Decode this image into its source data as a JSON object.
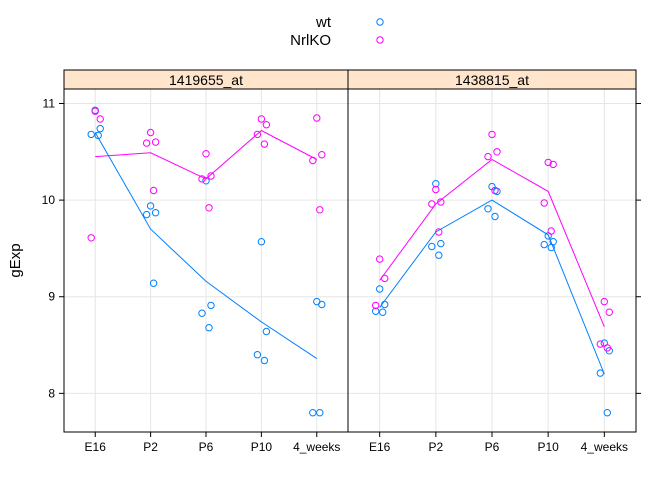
{
  "chart_data": {
    "type": "scatter",
    "ylabel": "gExp",
    "categories": [
      "E16",
      "P2",
      "P6",
      "P10",
      "4_weeks"
    ],
    "yticks": [
      8,
      9,
      10,
      11
    ],
    "ylim": [
      7.6,
      11.15
    ],
    "grid": true,
    "legend": {
      "position": "top-center",
      "entries": [
        {
          "name": "wt",
          "color": "#0080ff"
        },
        {
          "name": "NrlKO",
          "color": "#ff00ff"
        }
      ]
    },
    "panels": [
      {
        "strip": "1419655_at",
        "series": [
          {
            "name": "wt",
            "color": "#0080ff",
            "points": [
              {
                "x": "E16",
                "y": 10.93
              },
              {
                "x": "E16",
                "y": 10.74
              },
              {
                "x": "E16",
                "y": 10.68
              },
              {
                "x": "E16",
                "y": 10.67
              },
              {
                "x": "P2",
                "y": 9.94
              },
              {
                "x": "P2",
                "y": 9.87
              },
              {
                "x": "P2",
                "y": 9.85
              },
              {
                "x": "P2",
                "y": 9.14
              },
              {
                "x": "P6",
                "y": 10.2
              },
              {
                "x": "P6",
                "y": 8.91
              },
              {
                "x": "P6",
                "y": 8.83
              },
              {
                "x": "P6",
                "y": 8.68
              },
              {
                "x": "P10",
                "y": 9.57
              },
              {
                "x": "P10",
                "y": 8.64
              },
              {
                "x": "P10",
                "y": 8.4
              },
              {
                "x": "P10",
                "y": 8.34
              },
              {
                "x": "4_weeks",
                "y": 8.95
              },
              {
                "x": "4_weeks",
                "y": 8.92
              },
              {
                "x": "4_weeks",
                "y": 7.8
              },
              {
                "x": "4_weeks",
                "y": 7.8
              }
            ],
            "trend": [
              10.7,
              9.7,
              9.16,
              8.74,
              8.36
            ]
          },
          {
            "name": "NrlKO",
            "color": "#ff00ff",
            "points": [
              {
                "x": "E16",
                "y": 10.92
              },
              {
                "x": "E16",
                "y": 10.84
              },
              {
                "x": "E16",
                "y": 9.61
              },
              {
                "x": "P2",
                "y": 10.7
              },
              {
                "x": "P2",
                "y": 10.6
              },
              {
                "x": "P2",
                "y": 10.59
              },
              {
                "x": "P2",
                "y": 10.1
              },
              {
                "x": "P6",
                "y": 10.48
              },
              {
                "x": "P6",
                "y": 10.25
              },
              {
                "x": "P6",
                "y": 10.22
              },
              {
                "x": "P6",
                "y": 9.92
              },
              {
                "x": "P10",
                "y": 10.84
              },
              {
                "x": "P10",
                "y": 10.78
              },
              {
                "x": "P10",
                "y": 10.68
              },
              {
                "x": "P10",
                "y": 10.58
              },
              {
                "x": "4_weeks",
                "y": 10.85
              },
              {
                "x": "4_weeks",
                "y": 10.47
              },
              {
                "x": "4_weeks",
                "y": 10.41
              },
              {
                "x": "4_weeks",
                "y": 9.9
              }
            ],
            "trend": [
              10.45,
              10.49,
              10.22,
              10.72,
              10.42
            ]
          }
        ]
      },
      {
        "strip": "1438815_at",
        "series": [
          {
            "name": "wt",
            "color": "#0080ff",
            "points": [
              {
                "x": "E16",
                "y": 9.08
              },
              {
                "x": "E16",
                "y": 8.92
              },
              {
                "x": "E16",
                "y": 8.85
              },
              {
                "x": "E16",
                "y": 8.84
              },
              {
                "x": "P2",
                "y": 10.17
              },
              {
                "x": "P2",
                "y": 9.55
              },
              {
                "x": "P2",
                "y": 9.52
              },
              {
                "x": "P2",
                "y": 9.43
              },
              {
                "x": "P6",
                "y": 10.14
              },
              {
                "x": "P6",
                "y": 10.09
              },
              {
                "x": "P6",
                "y": 9.91
              },
              {
                "x": "P6",
                "y": 9.83
              },
              {
                "x": "P10",
                "y": 9.63
              },
              {
                "x": "P10",
                "y": 9.57
              },
              {
                "x": "P10",
                "y": 9.54
              },
              {
                "x": "P10",
                "y": 9.51
              },
              {
                "x": "4_weeks",
                "y": 8.52
              },
              {
                "x": "4_weeks",
                "y": 8.44
              },
              {
                "x": "4_weeks",
                "y": 8.21
              },
              {
                "x": "4_weeks",
                "y": 7.8
              }
            ],
            "trend": [
              8.89,
              9.67,
              10.0,
              9.64,
              8.2
            ]
          },
          {
            "name": "NrlKO",
            "color": "#ff00ff",
            "points": [
              {
                "x": "E16",
                "y": 9.39
              },
              {
                "x": "E16",
                "y": 9.19
              },
              {
                "x": "E16",
                "y": 8.91
              },
              {
                "x": "P2",
                "y": 10.11
              },
              {
                "x": "P2",
                "y": 9.98
              },
              {
                "x": "P2",
                "y": 9.96
              },
              {
                "x": "P2",
                "y": 9.67
              },
              {
                "x": "P6",
                "y": 10.68
              },
              {
                "x": "P6",
                "y": 10.5
              },
              {
                "x": "P6",
                "y": 10.45
              },
              {
                "x": "P6",
                "y": 10.1
              },
              {
                "x": "P10",
                "y": 10.39
              },
              {
                "x": "P10",
                "y": 10.37
              },
              {
                "x": "P10",
                "y": 9.97
              },
              {
                "x": "P10",
                "y": 9.68
              },
              {
                "x": "4_weeks",
                "y": 8.95
              },
              {
                "x": "4_weeks",
                "y": 8.84
              },
              {
                "x": "4_weeks",
                "y": 8.51
              },
              {
                "x": "4_weeks",
                "y": 8.47
              }
            ],
            "trend": [
              9.17,
              9.96,
              10.42,
              10.09,
              8.69
            ]
          }
        ]
      }
    ]
  }
}
